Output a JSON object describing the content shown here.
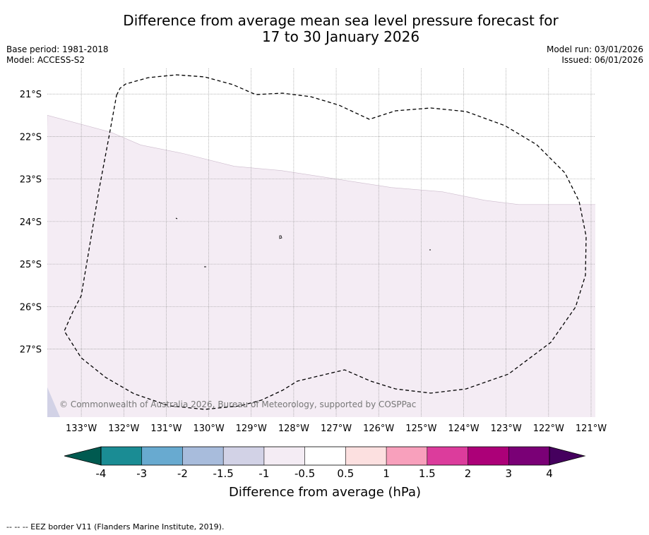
{
  "header": {
    "title_line1": "Difference from average mean sea level pressure forecast for",
    "title_line2": "17 to 30 January 2026",
    "base_period": "Base period: 1981-2018",
    "model": "Model: ACCESS-S2",
    "model_run": "Model run: 03/01/2026",
    "issued": "Issued: 06/01/2026"
  },
  "map": {
    "lat_labels": [
      "21°S",
      "22°S",
      "23°S",
      "24°S",
      "25°S",
      "26°S",
      "27°S"
    ],
    "lon_labels": [
      "133°W",
      "132°W",
      "131°W",
      "130°W",
      "129°W",
      "128°W",
      "127°W",
      "126°W",
      "125°W",
      "124°W",
      "123°W",
      "122°W",
      "121°W"
    ],
    "lat_range": [
      -28.6,
      -20.4
    ],
    "lon_range": [
      -133.8,
      -120.9
    ],
    "copyright": "© Commonwealth of Australia 2026, Bureau of Meteorology, supported by COSPPac",
    "fill_colors": {
      "band_-1.5_-1": "#d2d2e6",
      "band_-1_-0.5": "#f4ecf4",
      "band_-0.5_0.5": "#ffffff"
    },
    "zero_boundary_latlon": [
      [
        -21.5,
        -133.8
      ],
      [
        -21.9,
        -132.3
      ],
      [
        -22.2,
        -131.6
      ],
      [
        -22.4,
        -130.6
      ],
      [
        -22.7,
        -129.4
      ],
      [
        -22.8,
        -128.3
      ],
      [
        -23.0,
        -127.0
      ],
      [
        -23.2,
        -125.7
      ],
      [
        -23.3,
        -124.5
      ],
      [
        -23.5,
        -123.5
      ],
      [
        -23.6,
        -122.7
      ],
      [
        -23.6,
        -121.0
      ]
    ],
    "low_region_latlon": [
      [
        -27.9,
        -133.8
      ],
      [
        -28.6,
        -133.8
      ],
      [
        -28.6,
        -133.5
      ]
    ]
  },
  "colorbar": {
    "ticks": [
      "-4",
      "-3",
      "-2",
      "-1.5",
      "-1",
      "-0.5",
      "0.5",
      "1",
      "1.5",
      "2",
      "3",
      "4"
    ],
    "colors": [
      "#005a50",
      "#1a8c94",
      "#68aad0",
      "#a8bcdc",
      "#d2d2e6",
      "#f4ecf4",
      "#ffffff",
      "#fce0e0",
      "#f8a0bc",
      "#dc3c9c",
      "#ac0078",
      "#7a0076",
      "#45005e"
    ],
    "label": "Difference from average (hPa)"
  },
  "footer": {
    "legend": "--  --  -- EEZ border V11 (Flanders Marine Institute, 2019)."
  }
}
